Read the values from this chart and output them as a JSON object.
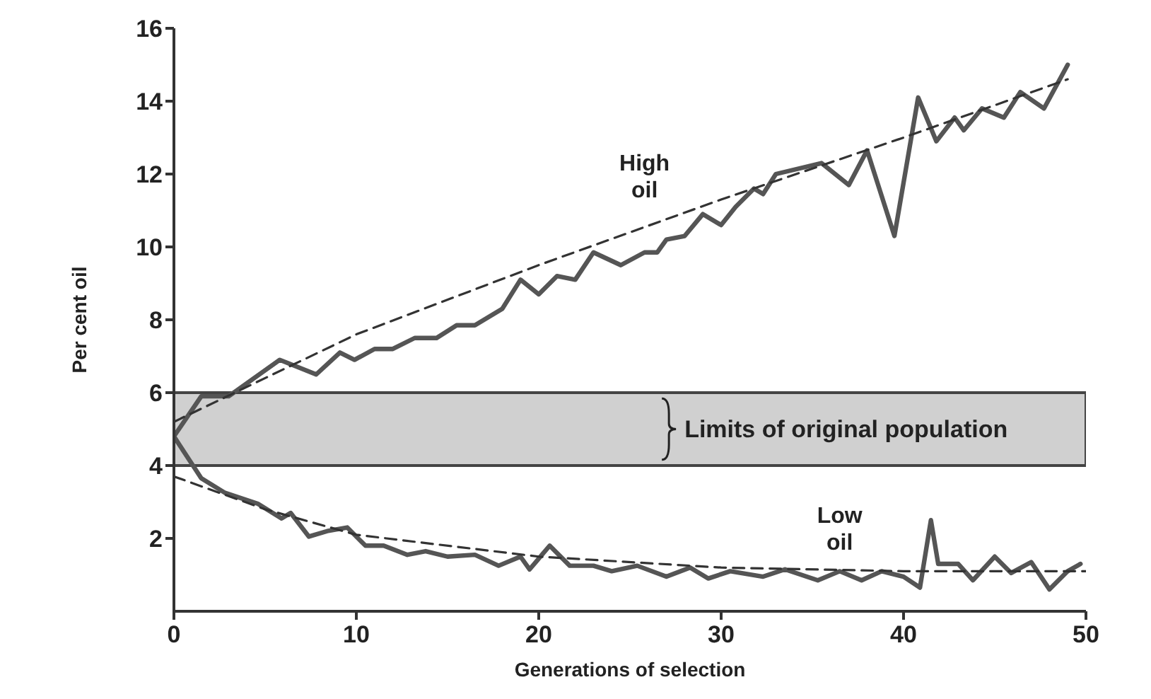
{
  "chart_data": {
    "type": "line",
    "xlabel": "Generations of selection",
    "ylabel": "Per cent oil",
    "xlim": [
      0,
      50
    ],
    "xticks": [
      0,
      10,
      20,
      30,
      40,
      50
    ],
    "ylim": [
      0,
      16
    ],
    "yticks": [
      2,
      4,
      6,
      8,
      10,
      12,
      14,
      16
    ],
    "marker": "none",
    "bands": [
      {
        "axis": "y",
        "from": 4,
        "to": 6,
        "label": "Limits of original population",
        "color": "#d0d0d0"
      }
    ],
    "series": [
      {
        "name": "High oil",
        "color": "#555555",
        "line_style": "solid",
        "x": [
          0,
          1.5,
          3,
          5.8,
          7.8,
          9.1,
          9.9,
          11,
          12,
          13.2,
          14.4,
          15.5,
          16.5,
          18,
          19,
          20,
          21,
          22,
          23,
          24.5,
          25.8,
          26.5,
          27,
          28,
          29,
          30,
          30.8,
          31.8,
          32.3,
          33,
          35.5,
          37,
          38,
          39.5,
          40.8,
          41.8,
          42.8,
          43.3,
          44.3,
          45.5,
          46.4,
          47.7,
          49
        ],
        "values": [
          4.8,
          5.9,
          5.9,
          6.9,
          6.5,
          7.1,
          6.9,
          7.2,
          7.2,
          7.5,
          7.5,
          7.85,
          7.85,
          8.3,
          9.1,
          8.7,
          9.2,
          9.1,
          9.85,
          9.5,
          9.85,
          9.85,
          10.2,
          10.3,
          10.9,
          10.6,
          11.1,
          11.6,
          11.45,
          12,
          12.3,
          11.7,
          12.65,
          10.3,
          14.1,
          12.9,
          13.55,
          13.2,
          13.8,
          13.55,
          14.25,
          13.8,
          15
        ]
      },
      {
        "name": "Low oil",
        "color": "#555555",
        "line_style": "solid",
        "x": [
          0,
          1.5,
          2.8,
          4.6,
          5.9,
          6.4,
          7.4,
          8.4,
          9.5,
          10.5,
          11.5,
          12.8,
          13.8,
          15,
          16.5,
          17.8,
          19,
          19.5,
          20.6,
          21.7,
          23,
          24,
          25.4,
          27,
          28.3,
          29.3,
          30.5,
          32.3,
          33.5,
          35.3,
          36.5,
          37.7,
          38.8,
          40,
          40.9,
          41.5,
          41.9,
          43,
          43.8,
          45,
          45.9,
          47,
          48,
          49,
          49.7
        ],
        "values": [
          4.8,
          3.65,
          3.25,
          2.95,
          2.55,
          2.7,
          2.05,
          2.2,
          2.3,
          1.8,
          1.8,
          1.55,
          1.65,
          1.5,
          1.55,
          1.25,
          1.5,
          1.15,
          1.8,
          1.25,
          1.25,
          1.1,
          1.25,
          0.95,
          1.2,
          0.9,
          1.1,
          0.95,
          1.15,
          0.85,
          1.1,
          0.85,
          1.1,
          0.95,
          0.65,
          2.5,
          1.3,
          1.3,
          0.85,
          1.5,
          1.05,
          1.35,
          0.6,
          1.1,
          1.3
        ]
      },
      {
        "color": "#333333",
        "line_style": "dashed",
        "x": [
          0,
          10,
          20,
          30,
          40,
          49
        ],
        "values": [
          5.2,
          7.6,
          9.5,
          11.3,
          13,
          14.6
        ]
      },
      {
        "color": "#333333",
        "line_style": "dashed",
        "x": [
          0,
          5,
          10,
          20,
          30,
          40,
          50
        ],
        "values": [
          3.7,
          2.8,
          2.1,
          1.5,
          1.2,
          1.1,
          1.1
        ]
      }
    ]
  }
}
